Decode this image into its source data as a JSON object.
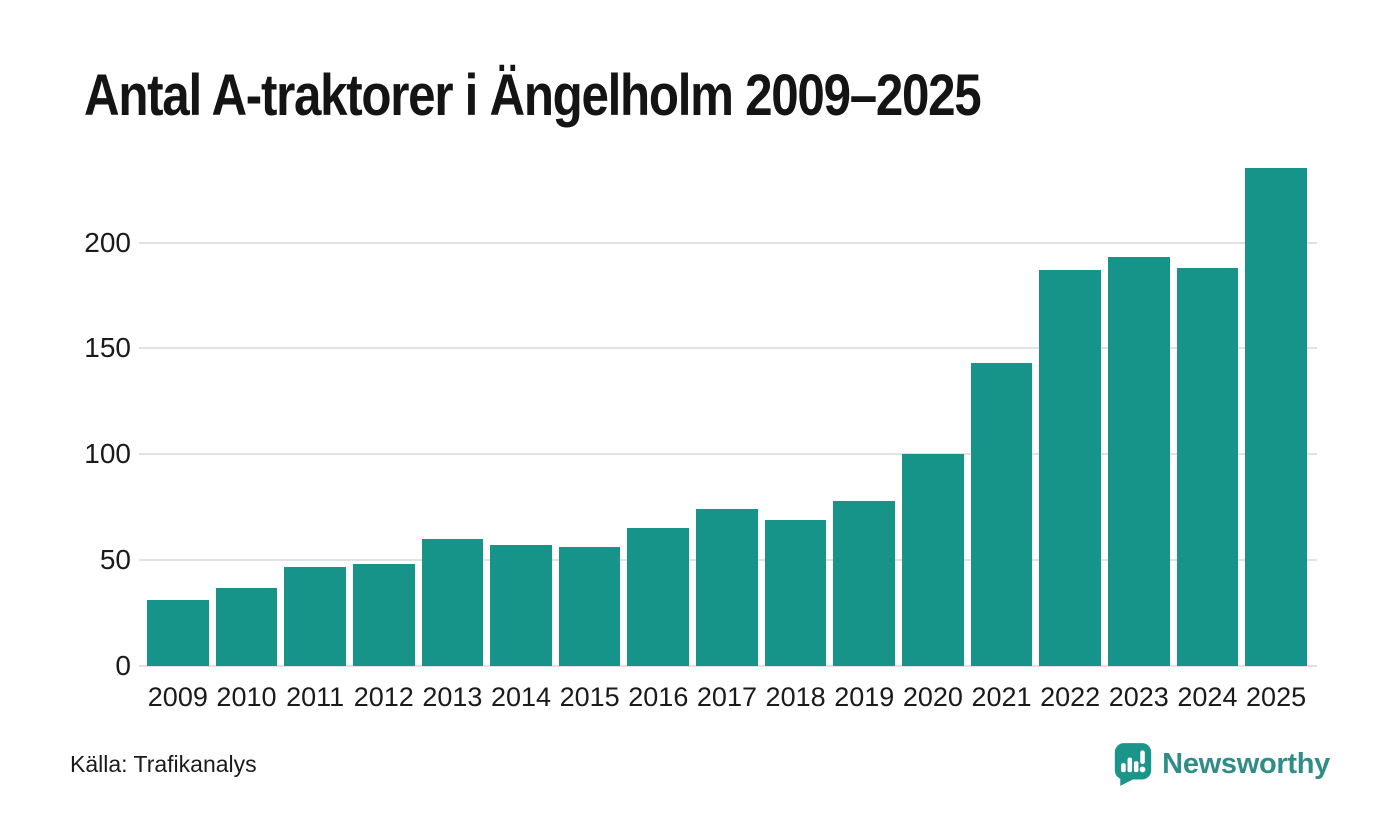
{
  "title": "Antal A-traktorer i Ängelholm 2009–2025",
  "footer": {
    "source": "Källa: Trafikanalys",
    "brand": "Newsworthy"
  },
  "icons": {
    "brand_icon": "newsworthy-speech-bubble-bar-chart-icon"
  },
  "colors": {
    "bar": "#17948a",
    "grid": "#e2e2e2",
    "title_text": "#141414",
    "axis_text": "#1a1a1a",
    "logo_icon": "#1b9489",
    "logo_text": "#2f8d87",
    "background": "#ffffff"
  },
  "chart_data": {
    "type": "bar",
    "title": "Antal A-traktorer i Ängelholm 2009–2025",
    "categories": [
      "2009",
      "2010",
      "2011",
      "2012",
      "2013",
      "2014",
      "2015",
      "2016",
      "2017",
      "2018",
      "2019",
      "2020",
      "2021",
      "2022",
      "2023",
      "2024",
      "2025"
    ],
    "values": [
      31,
      37,
      47,
      48,
      60,
      57,
      56,
      65,
      74,
      69,
      78,
      100,
      143,
      187,
      193,
      188,
      235
    ],
    "xlabel": "",
    "ylabel": "",
    "yticks": [
      0,
      50,
      100,
      150,
      200
    ],
    "ylim": [
      0,
      239
    ],
    "grid": "horizontal",
    "legend": "none",
    "bar_color": "#17948a",
    "source": "Källa: Trafikanalys"
  }
}
